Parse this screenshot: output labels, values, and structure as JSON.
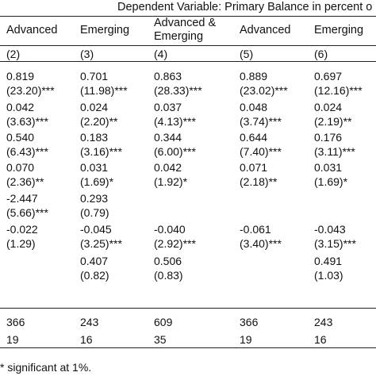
{
  "header": {
    "title": "Dependent Variable: Primary Balance in percent o",
    "columns": [
      {
        "label": "Advanced"
      },
      {
        "label": "Emerging"
      },
      {
        "label": "Advanced &\nEmerging"
      },
      {
        "label": "Advanced"
      },
      {
        "label": "Emerging"
      }
    ],
    "numbers": [
      "(2)",
      "(3)",
      "(4)",
      "(5)",
      "(6)"
    ]
  },
  "rows": [
    {
      "cells": [
        [
          "0.819",
          "(23.20)***"
        ],
        [
          "0.701",
          "(11.98)***"
        ],
        [
          "0.863",
          "(28.33)***"
        ],
        [
          "0.889",
          "(23.02)***"
        ],
        [
          "0.697",
          "(12.16)***"
        ]
      ]
    },
    {
      "cells": [
        [
          "0.042",
          "(3.63)***"
        ],
        [
          "0.024",
          "(2.20)**"
        ],
        [
          "0.037",
          "(4.13)***"
        ],
        [
          "0.048",
          "(3.74)***"
        ],
        [
          "0.024",
          "(2.19)**"
        ]
      ]
    },
    {
      "cells": [
        [
          "0.540",
          "(6.43)***"
        ],
        [
          "0.183",
          "(3.16)***"
        ],
        [
          "0.344",
          "(6.00)***"
        ],
        [
          "0.644",
          "(7.40)***"
        ],
        [
          "0.176",
          "(3.11)***"
        ]
      ]
    },
    {
      "cells": [
        [
          "0.070",
          "(2.36)**"
        ],
        [
          "0.031",
          "(1.69)*"
        ],
        [
          "0.042",
          "(1.92)*"
        ],
        [
          "0.071",
          "(2.18)**"
        ],
        [
          "0.031",
          "(1.69)*"
        ]
      ]
    },
    {
      "cells": [
        [
          "-2.447",
          "(5.66)***"
        ],
        [
          "0.293",
          "(0.79)"
        ],
        [
          "",
          ""
        ],
        [
          "",
          ""
        ],
        [
          "",
          ""
        ]
      ]
    },
    {
      "cells": [
        [
          "-0.022",
          "(1.29)"
        ],
        [
          "-0.045",
          "(3.25)***"
        ],
        [
          "-0.040",
          "(2.92)***"
        ],
        [
          "-0.061",
          "(3.40)***"
        ],
        [
          "-0.043",
          "(3.15)***"
        ]
      ]
    },
    {
      "cells": [
        [
          "",
          ""
        ],
        [
          "0.407",
          "(0.82)"
        ],
        [
          "0.506",
          "(0.83)"
        ],
        [
          "",
          ""
        ],
        [
          "0.491",
          "(1.03)"
        ]
      ]
    }
  ],
  "stats": [
    [
      "366",
      "243",
      "609",
      "366",
      "243"
    ],
    [
      "19",
      "16",
      "35",
      "19",
      "16"
    ]
  ],
  "footer": {
    "note": "* significant at 1%."
  }
}
